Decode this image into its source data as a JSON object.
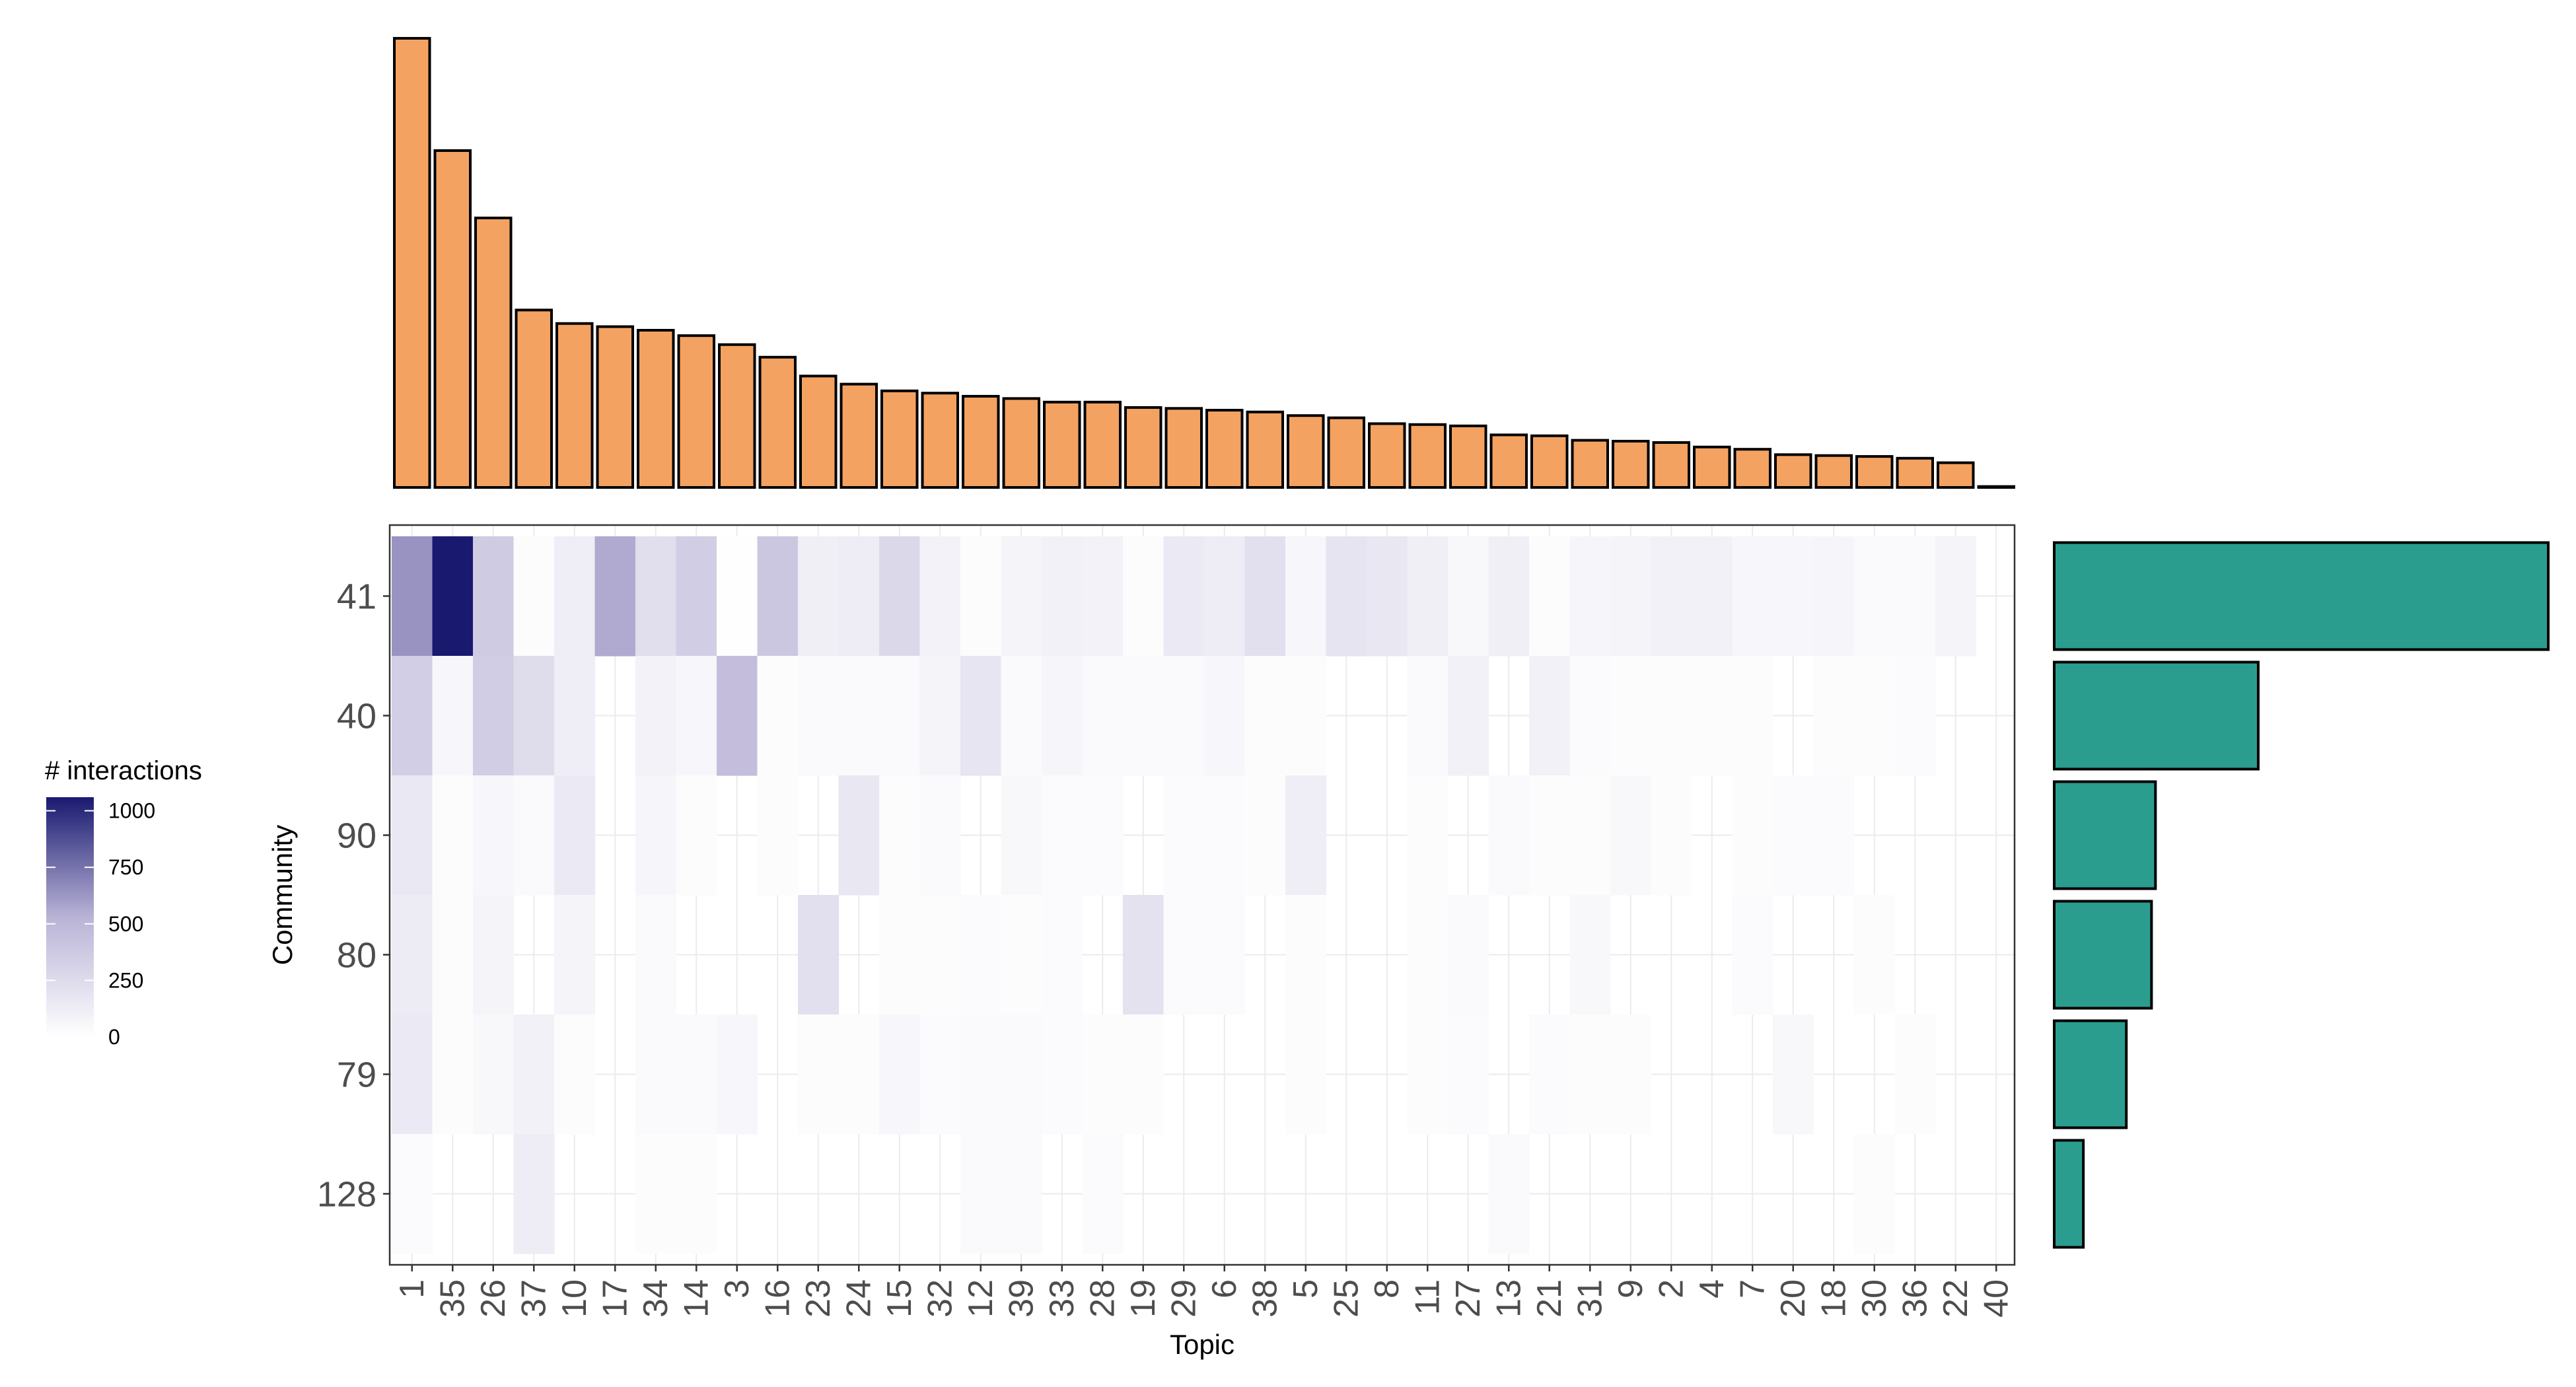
{
  "chart_data": {
    "type": "heatmap",
    "xlabel": "Topic",
    "ylabel": "Community",
    "x_categories": [
      "1",
      "35",
      "26",
      "37",
      "10",
      "17",
      "34",
      "14",
      "3",
      "16",
      "23",
      "24",
      "15",
      "32",
      "12",
      "39",
      "33",
      "28",
      "19",
      "29",
      "6",
      "38",
      "5",
      "25",
      "8",
      "11",
      "27",
      "13",
      "21",
      "31",
      "9",
      "2",
      "4",
      "7",
      "20",
      "18",
      "30",
      "36",
      "22",
      "40"
    ],
    "y_categories": [
      "41",
      "40",
      "90",
      "80",
      "79",
      "128"
    ],
    "values": [
      [
        640,
        1060,
        360,
        20,
        120,
        560,
        230,
        350,
        10,
        390,
        110,
        130,
        270,
        90,
        20,
        80,
        100,
        90,
        20,
        150,
        130,
        220,
        60,
        190,
        170,
        110,
        50,
        110,
        20,
        70,
        80,
        100,
        100,
        60,
        60,
        70,
        40,
        40,
        80,
        0
      ],
      [
        340,
        60,
        350,
        240,
        120,
        0,
        90,
        60,
        450,
        20,
        40,
        40,
        40,
        80,
        180,
        40,
        70,
        40,
        40,
        40,
        60,
        20,
        20,
        0,
        0,
        40,
        100,
        0,
        100,
        30,
        20,
        20,
        20,
        20,
        0,
        20,
        20,
        30,
        0,
        0
      ],
      [
        160,
        20,
        60,
        40,
        150,
        0,
        70,
        20,
        0,
        20,
        0,
        170,
        20,
        40,
        0,
        50,
        30,
        30,
        0,
        30,
        30,
        20,
        120,
        0,
        0,
        20,
        0,
        40,
        20,
        20,
        50,
        20,
        0,
        20,
        30,
        30,
        0,
        0,
        0,
        0
      ],
      [
        140,
        20,
        80,
        0,
        80,
        0,
        40,
        0,
        0,
        0,
        220,
        0,
        20,
        20,
        30,
        20,
        30,
        0,
        200,
        30,
        30,
        0,
        20,
        0,
        0,
        20,
        40,
        0,
        0,
        50,
        0,
        0,
        0,
        30,
        0,
        0,
        20,
        0,
        0,
        0
      ],
      [
        150,
        20,
        50,
        100,
        20,
        0,
        40,
        40,
        60,
        0,
        20,
        20,
        60,
        30,
        40,
        40,
        30,
        20,
        20,
        0,
        0,
        0,
        20,
        0,
        0,
        20,
        30,
        0,
        30,
        20,
        20,
        0,
        0,
        0,
        50,
        0,
        0,
        20,
        0,
        0
      ],
      [
        30,
        0,
        0,
        130,
        0,
        0,
        20,
        20,
        0,
        0,
        0,
        0,
        0,
        0,
        40,
        40,
        0,
        30,
        0,
        0,
        0,
        0,
        0,
        0,
        0,
        0,
        0,
        40,
        0,
        0,
        0,
        0,
        0,
        0,
        0,
        0,
        20,
        0,
        0,
        0
      ]
    ],
    "color_scale": {
      "low": "#ffffff",
      "mid": "#b9b3d6",
      "high": "#191970",
      "domain": [
        0,
        1060
      ]
    },
    "legend": {
      "title": "# interactions",
      "ticks": [
        1000,
        750,
        500,
        250,
        0
      ],
      "placement": "left"
    },
    "top_marginal": {
      "type": "bar",
      "categories": [
        "1",
        "35",
        "26",
        "37",
        "10",
        "17",
        "34",
        "14",
        "3",
        "16",
        "23",
        "24",
        "15",
        "32",
        "12",
        "39",
        "33",
        "28",
        "19",
        "29",
        "6",
        "38",
        "5",
        "25",
        "8",
        "11",
        "27",
        "13",
        "21",
        "31",
        "9",
        "2",
        "4",
        "7",
        "20",
        "18",
        "30",
        "36",
        "22",
        "40"
      ],
      "values": [
        1000,
        750,
        600,
        395,
        365,
        358,
        350,
        338,
        318,
        290,
        248,
        230,
        215,
        210,
        203,
        198,
        190,
        190,
        178,
        176,
        172,
        168,
        160,
        155,
        142,
        140,
        137,
        117,
        115,
        105,
        103,
        100,
        90,
        85,
        73,
        71,
        69,
        65,
        55,
        2
      ],
      "fill": "#f4a261"
    },
    "right_marginal": {
      "type": "bar",
      "orientation": "horizontal",
      "categories": [
        "41",
        "40",
        "90",
        "80",
        "79",
        "128"
      ],
      "values": [
        1000,
        413,
        205,
        197,
        146,
        59
      ],
      "fill": "#2a9d8f"
    }
  }
}
